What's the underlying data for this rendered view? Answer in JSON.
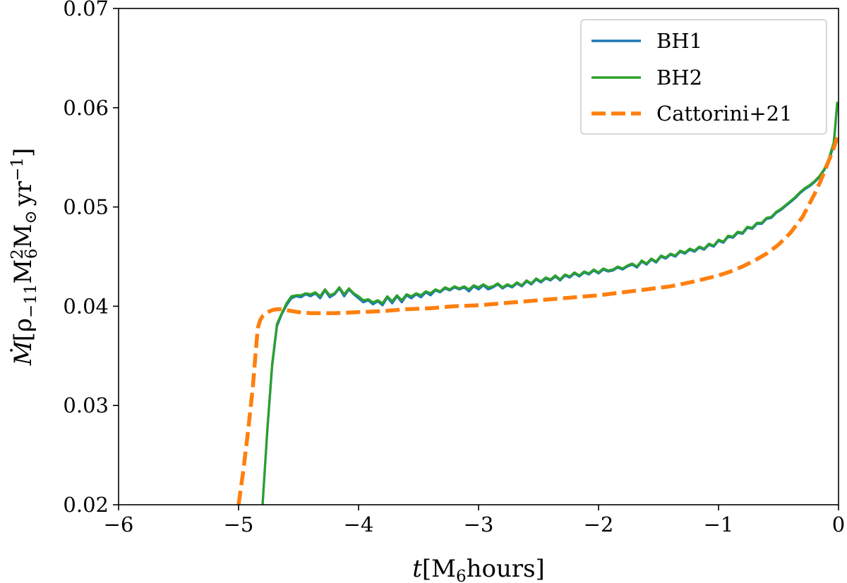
{
  "chart_data": {
    "type": "line",
    "title": "",
    "xlabel": "t[M6hours]",
    "ylabel": "Ṁ[ρ−11M6²M⊙yr−1]",
    "xlabel_parts": {
      "var": "t",
      "open": "[M",
      "sub": "6",
      "rest": "hours]"
    },
    "ylabel_parts": {
      "mdot": "M",
      "dot": "˙",
      "open": "[ρ",
      "rho_sub": "−11",
      "m": "M",
      "m_sup": "2",
      "m_sub": "6",
      "msun": "M",
      "sun_sub": "⊙",
      "yr": "yr",
      "yr_sup": "−1",
      "close": "]"
    },
    "xlim": [
      -6,
      0
    ],
    "ylim": [
      0.02,
      0.07
    ],
    "xticks": [
      -6,
      -5,
      -4,
      -3,
      -2,
      -1,
      0
    ],
    "xtick_labels": [
      "−6",
      "−5",
      "−4",
      "−3",
      "−2",
      "−1",
      "0"
    ],
    "yticks": [
      0.02,
      0.03,
      0.04,
      0.05,
      0.06,
      0.07
    ],
    "ytick_labels": [
      "0.02",
      "0.03",
      "0.04",
      "0.05",
      "0.06",
      "0.07"
    ],
    "grid": false,
    "legend_position": "top-right",
    "series": [
      {
        "name": "BH1",
        "color": "#1f77b4",
        "style": "solid",
        "x": [
          -4.8,
          -4.76,
          -4.72,
          -4.68,
          -4.64,
          -4.6,
          -4.56,
          -4.52,
          -4.48,
          -4.44,
          -4.4,
          -4.36,
          -4.32,
          -4.28,
          -4.24,
          -4.2,
          -4.16,
          -4.12,
          -4.08,
          -4.04,
          -4.0,
          -3.96,
          -3.92,
          -3.88,
          -3.84,
          -3.8,
          -3.76,
          -3.72,
          -3.68,
          -3.64,
          -3.6,
          -3.56,
          -3.52,
          -3.48,
          -3.44,
          -3.4,
          -3.36,
          -3.32,
          -3.28,
          -3.24,
          -3.2,
          -3.16,
          -3.12,
          -3.08,
          -3.04,
          -3.0,
          -2.96,
          -2.92,
          -2.88,
          -2.84,
          -2.8,
          -2.76,
          -2.72,
          -2.68,
          -2.64,
          -2.6,
          -2.56,
          -2.52,
          -2.48,
          -2.44,
          -2.4,
          -2.36,
          -2.32,
          -2.28,
          -2.24,
          -2.2,
          -2.16,
          -2.12,
          -2.08,
          -2.04,
          -2.0,
          -1.96,
          -1.92,
          -1.88,
          -1.84,
          -1.8,
          -1.76,
          -1.72,
          -1.68,
          -1.64,
          -1.6,
          -1.56,
          -1.52,
          -1.48,
          -1.44,
          -1.4,
          -1.36,
          -1.32,
          -1.28,
          -1.24,
          -1.2,
          -1.16,
          -1.12,
          -1.08,
          -1.04,
          -1.0,
          -0.96,
          -0.92,
          -0.88,
          -0.84,
          -0.8,
          -0.76,
          -0.72,
          -0.68,
          -0.64,
          -0.6,
          -0.56,
          -0.52,
          -0.48,
          -0.44,
          -0.4,
          -0.36,
          -0.32,
          -0.28,
          -0.24,
          -0.2,
          -0.16,
          -0.12,
          -0.08,
          -0.04,
          -0.01
        ],
        "y": [
          0.02,
          0.0275,
          0.034,
          0.038,
          0.0392,
          0.0401,
          0.0408,
          0.041,
          0.0409,
          0.0412,
          0.041,
          0.0413,
          0.0408,
          0.0416,
          0.0409,
          0.0412,
          0.0418,
          0.041,
          0.0417,
          0.0412,
          0.0408,
          0.0404,
          0.0406,
          0.0402,
          0.0405,
          0.0401,
          0.0409,
          0.0403,
          0.041,
          0.0404,
          0.0411,
          0.0408,
          0.0412,
          0.0409,
          0.0414,
          0.0411,
          0.0416,
          0.0414,
          0.0418,
          0.0416,
          0.0419,
          0.0417,
          0.0419,
          0.0415,
          0.042,
          0.0417,
          0.0421,
          0.0417,
          0.0419,
          0.0422,
          0.0418,
          0.0421,
          0.0419,
          0.0423,
          0.042,
          0.0425,
          0.0422,
          0.0427,
          0.0424,
          0.0428,
          0.0426,
          0.043,
          0.0426,
          0.0431,
          0.0429,
          0.0433,
          0.043,
          0.0434,
          0.0432,
          0.0436,
          0.0433,
          0.0437,
          0.0435,
          0.0436,
          0.0439,
          0.0437,
          0.044,
          0.0442,
          0.0439,
          0.0445,
          0.0442,
          0.0447,
          0.0444,
          0.045,
          0.0448,
          0.0452,
          0.045,
          0.0455,
          0.0453,
          0.0457,
          0.0455,
          0.0459,
          0.0457,
          0.0462,
          0.046,
          0.0466,
          0.0464,
          0.047,
          0.0469,
          0.0474,
          0.0473,
          0.0479,
          0.0478,
          0.0483,
          0.0483,
          0.0488,
          0.0489,
          0.0494,
          0.0497,
          0.0501,
          0.0505,
          0.0509,
          0.0514,
          0.0518,
          0.0521,
          0.0525,
          0.053,
          0.0537,
          0.0547,
          0.0562,
          0.0605
        ]
      },
      {
        "name": "BH2",
        "color": "#2ca02c",
        "style": "solid",
        "x": [
          -4.8,
          -4.76,
          -4.72,
          -4.68,
          -4.64,
          -4.6,
          -4.56,
          -4.52,
          -4.48,
          -4.44,
          -4.4,
          -4.36,
          -4.32,
          -4.28,
          -4.24,
          -4.2,
          -4.16,
          -4.12,
          -4.08,
          -4.04,
          -4.0,
          -3.96,
          -3.92,
          -3.88,
          -3.84,
          -3.8,
          -3.76,
          -3.72,
          -3.68,
          -3.64,
          -3.6,
          -3.56,
          -3.52,
          -3.48,
          -3.44,
          -3.4,
          -3.36,
          -3.32,
          -3.28,
          -3.24,
          -3.2,
          -3.16,
          -3.12,
          -3.08,
          -3.04,
          -3.0,
          -2.96,
          -2.92,
          -2.88,
          -2.84,
          -2.8,
          -2.76,
          -2.72,
          -2.68,
          -2.64,
          -2.6,
          -2.56,
          -2.52,
          -2.48,
          -2.44,
          -2.4,
          -2.36,
          -2.32,
          -2.28,
          -2.24,
          -2.2,
          -2.16,
          -2.12,
          -2.08,
          -2.04,
          -2.0,
          -1.96,
          -1.92,
          -1.88,
          -1.84,
          -1.8,
          -1.76,
          -1.72,
          -1.68,
          -1.64,
          -1.6,
          -1.56,
          -1.52,
          -1.48,
          -1.44,
          -1.4,
          -1.36,
          -1.32,
          -1.28,
          -1.24,
          -1.2,
          -1.16,
          -1.12,
          -1.08,
          -1.04,
          -1.0,
          -0.96,
          -0.92,
          -0.88,
          -0.84,
          -0.8,
          -0.76,
          -0.72,
          -0.68,
          -0.64,
          -0.6,
          -0.56,
          -0.52,
          -0.48,
          -0.44,
          -0.4,
          -0.36,
          -0.32,
          -0.28,
          -0.24,
          -0.2,
          -0.16,
          -0.12,
          -0.08,
          -0.04,
          -0.01
        ],
        "y": [
          0.02,
          0.0277,
          0.0342,
          0.0382,
          0.0393,
          0.0403,
          0.041,
          0.0411,
          0.0411,
          0.0413,
          0.0412,
          0.0414,
          0.041,
          0.0417,
          0.0411,
          0.0413,
          0.0419,
          0.0412,
          0.0418,
          0.0413,
          0.041,
          0.0406,
          0.0407,
          0.0404,
          0.0406,
          0.0403,
          0.041,
          0.0405,
          0.0411,
          0.0406,
          0.0412,
          0.041,
          0.0413,
          0.0411,
          0.0415,
          0.0413,
          0.0417,
          0.0415,
          0.0419,
          0.0417,
          0.042,
          0.0418,
          0.042,
          0.0417,
          0.0421,
          0.0419,
          0.0422,
          0.0419,
          0.042,
          0.0423,
          0.0419,
          0.0422,
          0.042,
          0.0424,
          0.0421,
          0.0426,
          0.0423,
          0.0428,
          0.0425,
          0.0429,
          0.0427,
          0.0431,
          0.0427,
          0.0432,
          0.043,
          0.0434,
          0.0431,
          0.0435,
          0.0433,
          0.0437,
          0.0434,
          0.0438,
          0.0436,
          0.0437,
          0.044,
          0.0438,
          0.0441,
          0.0443,
          0.044,
          0.0446,
          0.0443,
          0.0448,
          0.0445,
          0.0451,
          0.0449,
          0.0453,
          0.0451,
          0.0456,
          0.0454,
          0.0458,
          0.0456,
          0.046,
          0.0458,
          0.0463,
          0.0461,
          0.0467,
          0.0465,
          0.0471,
          0.047,
          0.0475,
          0.0474,
          0.048,
          0.0479,
          0.0484,
          0.0484,
          0.0489,
          0.049,
          0.0495,
          0.0498,
          0.0502,
          0.0506,
          0.051,
          0.0515,
          0.0519,
          0.0522,
          0.0526,
          0.0531,
          0.0538,
          0.0549,
          0.0565,
          0.0606
        ]
      },
      {
        "name": "Cattorini+21",
        "color": "#ff7f0e",
        "style": "dashed",
        "x": [
          -5.0,
          -4.96,
          -4.92,
          -4.88,
          -4.86,
          -4.84,
          -4.82,
          -4.8,
          -4.76,
          -4.72,
          -4.68,
          -4.64,
          -4.6,
          -4.5,
          -4.4,
          -4.3,
          -4.2,
          -4.0,
          -3.8,
          -3.6,
          -3.4,
          -3.2,
          -3.0,
          -2.8,
          -2.6,
          -2.4,
          -2.2,
          -2.0,
          -1.8,
          -1.6,
          -1.4,
          -1.2,
          -1.0,
          -0.9,
          -0.8,
          -0.7,
          -0.6,
          -0.5,
          -0.4,
          -0.3,
          -0.2,
          -0.15,
          -0.1,
          -0.05,
          -0.01
        ],
        "y": [
          0.02,
          0.0235,
          0.0275,
          0.032,
          0.035,
          0.0378,
          0.0386,
          0.039,
          0.0394,
          0.0396,
          0.0397,
          0.0397,
          0.0396,
          0.0394,
          0.0393,
          0.0393,
          0.0393,
          0.0394,
          0.0395,
          0.0397,
          0.0398,
          0.04,
          0.0401,
          0.0403,
          0.0405,
          0.0407,
          0.0409,
          0.0411,
          0.0414,
          0.0417,
          0.042,
          0.0425,
          0.0431,
          0.0435,
          0.044,
          0.0446,
          0.0453,
          0.0462,
          0.0474,
          0.049,
          0.0513,
          0.0526,
          0.0541,
          0.0556,
          0.057
        ]
      }
    ]
  }
}
